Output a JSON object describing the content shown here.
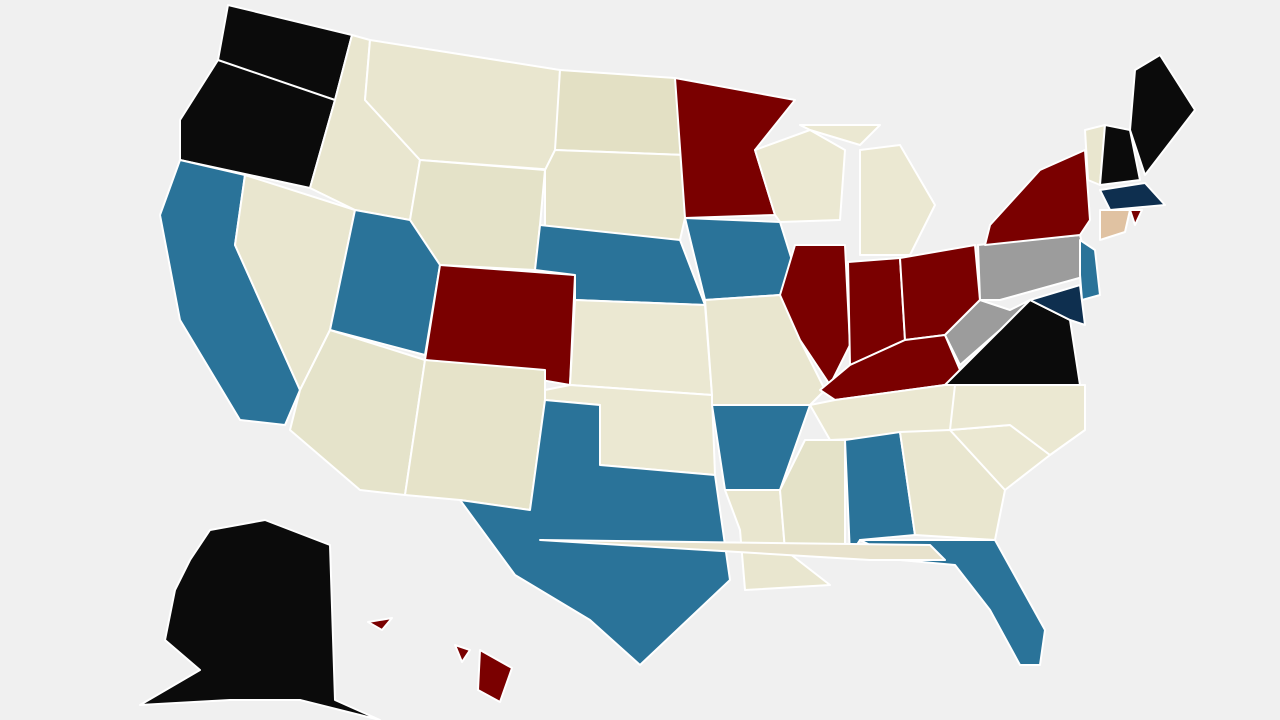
{
  "map": {
    "background": "#f0f0f0",
    "region_colors": [
      "#0b0b0b",
      "#0b0b0b",
      "#2a7399",
      "#e9e6cf",
      "#e9e6cf",
      "#e9e6cf",
      "#e4e2c8",
      "#2a7399",
      "#7a0000",
      "#e5e3ca",
      "#e6e3c9",
      "#e3e0c4",
      "#e6e3c9",
      "#2a7399",
      "#ebe8d2",
      "#ebe8d2",
      "#2a7399",
      "#7a0000",
      "#2a7399",
      "#e9e6cf",
      "#2a7399",
      "#e9e6cf",
      "#ebe8d2",
      "#7a0000",
      "#ebe8d2",
      "#ebe8d2",
      "#7a0000",
      "#7a0000",
      "#7a0000",
      "#ebe8d2",
      "#e4e2c8",
      "#2a7399",
      "#e9e6cf",
      "#2a7399",
      "#ebe8d2",
      "#ebe8d2",
      "#0b0b0b",
      "#9c9c9c",
      "#9c9c9c",
      "#7a0000",
      "#0e2f4f",
      "#2a7399",
      "#e9e6cf",
      "#0b0b0b",
      "#0b0b0b",
      "#0e2f4f",
      "#e0c2a2",
      "#7a0000",
      "#0b0b0b",
      "#7a0000",
      "#7a0000",
      "#7a0000",
      "#e8e2cc"
    ]
  }
}
